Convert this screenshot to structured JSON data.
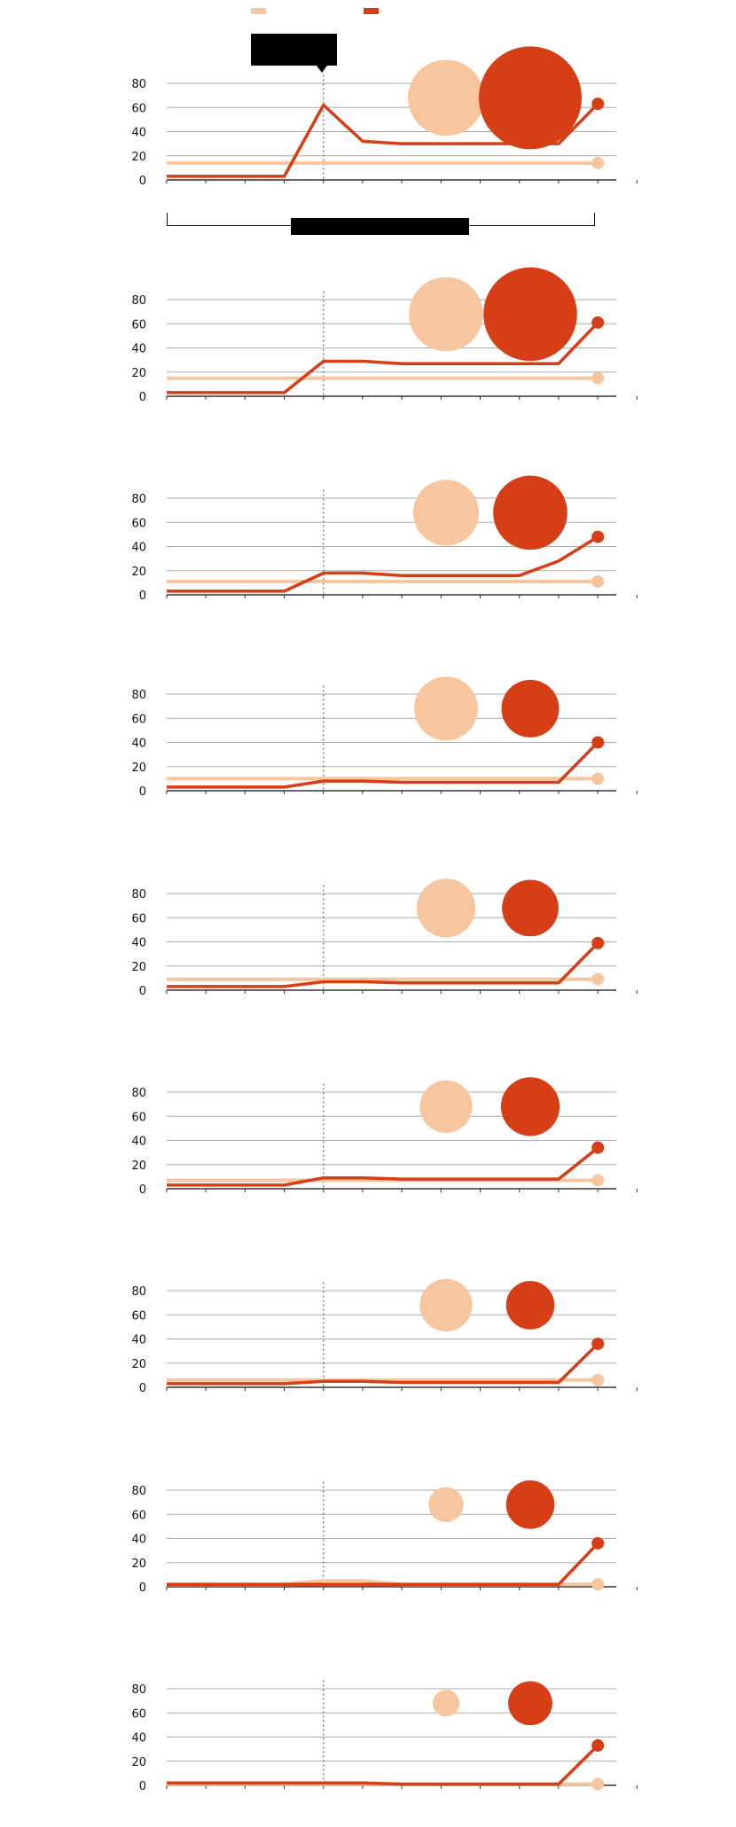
{
  "colors": {
    "light": "#f7c59e",
    "dark": "#d63e15",
    "grid": "#aaaaaa",
    "axis": "#333333",
    "marker": "#666666"
  },
  "legend": {
    "items": [
      {
        "color_key": "light",
        "label": ""
      },
      {
        "color_key": "dark",
        "label": ""
      }
    ]
  },
  "tooltip": {
    "text": ""
  },
  "brush": {
    "label": ""
  },
  "chart_data": [
    {
      "type": "line",
      "index": 1,
      "ylim": [
        0,
        90
      ],
      "yticks": [
        "0",
        "20",
        "40",
        "60",
        "80"
      ],
      "marker_x": 4,
      "series": [
        {
          "color_key": "light",
          "x": [
            0,
            1,
            2,
            3,
            4,
            5,
            6,
            7,
            8,
            9,
            10,
            11
          ],
          "values": [
            14,
            14,
            14,
            14,
            14,
            14,
            14,
            14,
            14,
            14,
            14,
            14
          ]
        },
        {
          "color_key": "dark",
          "x": [
            0,
            1,
            2,
            3,
            4,
            5,
            6,
            7,
            8,
            9,
            10,
            11
          ],
          "values": [
            3,
            3,
            3,
            3,
            62,
            32,
            30,
            30,
            30,
            30,
            30,
            63
          ]
        }
      ],
      "bubbles": [
        {
          "color_key": "light",
          "size": 0.74
        },
        {
          "color_key": "dark",
          "size": 1.0
        }
      ]
    },
    {
      "type": "line",
      "index": 2,
      "ylim": [
        0,
        90
      ],
      "yticks": [
        "0",
        "20",
        "40",
        "60",
        "80"
      ],
      "marker_x": 4,
      "series": [
        {
          "color_key": "light",
          "x": [
            0,
            1,
            2,
            3,
            4,
            5,
            6,
            7,
            8,
            9,
            10,
            11
          ],
          "values": [
            15,
            15,
            15,
            15,
            15,
            15,
            15,
            15,
            15,
            15,
            15,
            15
          ]
        },
        {
          "color_key": "dark",
          "x": [
            0,
            1,
            2,
            3,
            4,
            5,
            6,
            7,
            8,
            9,
            10,
            11
          ],
          "values": [
            3,
            3,
            3,
            3,
            29,
            29,
            27,
            27,
            27,
            27,
            27,
            61
          ]
        }
      ],
      "bubbles": [
        {
          "color_key": "light",
          "size": 0.72
        },
        {
          "color_key": "dark",
          "size": 0.91
        }
      ]
    },
    {
      "type": "line",
      "index": 3,
      "ylim": [
        0,
        90
      ],
      "yticks": [
        "0",
        "20",
        "40",
        "60",
        "80"
      ],
      "marker_x": 4,
      "series": [
        {
          "color_key": "light",
          "x": [
            0,
            1,
            2,
            3,
            4,
            5,
            6,
            7,
            8,
            9,
            10,
            11
          ],
          "values": [
            11,
            11,
            11,
            11,
            11,
            11,
            11,
            11,
            11,
            11,
            11,
            11
          ]
        },
        {
          "color_key": "dark",
          "x": [
            0,
            1,
            2,
            3,
            4,
            5,
            6,
            7,
            8,
            9,
            10,
            11
          ],
          "values": [
            3,
            3,
            3,
            3,
            18,
            18,
            16,
            16,
            16,
            16,
            28,
            48
          ]
        }
      ],
      "bubbles": [
        {
          "color_key": "light",
          "size": 0.64
        },
        {
          "color_key": "dark",
          "size": 0.72
        }
      ]
    },
    {
      "type": "line",
      "index": 4,
      "ylim": [
        0,
        90
      ],
      "yticks": [
        "0",
        "20",
        "40",
        "60",
        "80"
      ],
      "marker_x": 4,
      "series": [
        {
          "color_key": "light",
          "x": [
            0,
            1,
            2,
            3,
            4,
            5,
            6,
            7,
            8,
            9,
            10,
            11
          ],
          "values": [
            10,
            10,
            10,
            10,
            10,
            10,
            10,
            10,
            10,
            10,
            10,
            10
          ]
        },
        {
          "color_key": "dark",
          "x": [
            0,
            1,
            2,
            3,
            4,
            5,
            6,
            7,
            8,
            9,
            10,
            11
          ],
          "values": [
            3,
            3,
            3,
            3,
            8,
            8,
            7,
            7,
            7,
            7,
            7,
            40
          ]
        }
      ],
      "bubbles": [
        {
          "color_key": "light",
          "size": 0.62
        },
        {
          "color_key": "dark",
          "size": 0.56
        }
      ]
    },
    {
      "type": "line",
      "index": 5,
      "ylim": [
        0,
        90
      ],
      "yticks": [
        "0",
        "20",
        "40",
        "60",
        "80"
      ],
      "marker_x": 4,
      "series": [
        {
          "color_key": "light",
          "x": [
            0,
            1,
            2,
            3,
            4,
            5,
            6,
            7,
            8,
            9,
            10,
            11
          ],
          "values": [
            9,
            9,
            9,
            9,
            9,
            9,
            9,
            9,
            9,
            9,
            9,
            9
          ]
        },
        {
          "color_key": "dark",
          "x": [
            0,
            1,
            2,
            3,
            4,
            5,
            6,
            7,
            8,
            9,
            10,
            11
          ],
          "values": [
            3,
            3,
            3,
            3,
            7,
            7,
            6,
            6,
            6,
            6,
            6,
            39
          ]
        }
      ],
      "bubbles": [
        {
          "color_key": "light",
          "size": 0.57
        },
        {
          "color_key": "dark",
          "size": 0.55
        }
      ]
    },
    {
      "type": "line",
      "index": 6,
      "ylim": [
        0,
        90
      ],
      "yticks": [
        "0",
        "20",
        "40",
        "60",
        "80"
      ],
      "marker_x": 4,
      "series": [
        {
          "color_key": "light",
          "x": [
            0,
            1,
            2,
            3,
            4,
            5,
            6,
            7,
            8,
            9,
            10,
            11
          ],
          "values": [
            7,
            7,
            7,
            7,
            7,
            7,
            7,
            7,
            7,
            7,
            7,
            7
          ]
        },
        {
          "color_key": "dark",
          "x": [
            0,
            1,
            2,
            3,
            4,
            5,
            6,
            7,
            8,
            9,
            10,
            11
          ],
          "values": [
            3,
            3,
            3,
            3,
            9,
            9,
            8,
            8,
            8,
            8,
            8,
            34
          ]
        }
      ],
      "bubbles": [
        {
          "color_key": "light",
          "size": 0.51
        },
        {
          "color_key": "dark",
          "size": 0.57
        }
      ]
    },
    {
      "type": "line",
      "index": 7,
      "ylim": [
        0,
        90
      ],
      "yticks": [
        "0",
        "20",
        "40",
        "60",
        "80"
      ],
      "marker_x": 4,
      "series": [
        {
          "color_key": "light",
          "x": [
            0,
            1,
            2,
            3,
            4,
            5,
            6,
            7,
            8,
            9,
            10,
            11
          ],
          "values": [
            6,
            6,
            6,
            6,
            6,
            6,
            6,
            6,
            6,
            6,
            6,
            6
          ]
        },
        {
          "color_key": "dark",
          "x": [
            0,
            1,
            2,
            3,
            4,
            5,
            6,
            7,
            8,
            9,
            10,
            11
          ],
          "values": [
            3,
            3,
            3,
            3,
            5,
            5,
            4,
            4,
            4,
            4,
            4,
            36
          ]
        }
      ],
      "bubbles": [
        {
          "color_key": "light",
          "size": 0.51
        },
        {
          "color_key": "dark",
          "size": 0.47
        }
      ]
    },
    {
      "type": "line",
      "index": 8,
      "ylim": [
        0,
        90
      ],
      "yticks": [
        "0",
        "20",
        "40",
        "60",
        "80"
      ],
      "marker_x": 4,
      "series": [
        {
          "color_key": "light",
          "x": [
            0,
            1,
            2,
            3,
            4,
            5,
            6,
            7,
            8,
            9,
            10,
            11
          ],
          "values": [
            2,
            2,
            2,
            2,
            5,
            5,
            2,
            2,
            2,
            2,
            2,
            2
          ]
        },
        {
          "color_key": "dark",
          "x": [
            0,
            1,
            2,
            3,
            4,
            5,
            6,
            7,
            8,
            9,
            10,
            11
          ],
          "values": [
            2,
            2,
            2,
            2,
            2,
            2,
            2,
            2,
            2,
            2,
            2,
            36
          ]
        }
      ],
      "bubbles": [
        {
          "color_key": "light",
          "size": 0.34
        },
        {
          "color_key": "dark",
          "size": 0.47
        }
      ]
    },
    {
      "type": "line",
      "index": 9,
      "ylim": [
        0,
        90
      ],
      "yticks": [
        "0",
        "20",
        "40",
        "60",
        "80"
      ],
      "marker_x": 4,
      "series": [
        {
          "color_key": "light",
          "x": [
            0,
            1,
            2,
            3,
            4,
            5,
            6,
            7,
            8,
            9,
            10,
            11
          ],
          "values": [
            1,
            1,
            1,
            1,
            1,
            1,
            1,
            1,
            1,
            1,
            1,
            1
          ]
        },
        {
          "color_key": "dark",
          "x": [
            0,
            1,
            2,
            3,
            4,
            5,
            6,
            7,
            8,
            9,
            10,
            11
          ],
          "values": [
            2,
            2,
            2,
            2,
            2,
            2,
            1,
            1,
            1,
            1,
            1,
            33
          ]
        }
      ],
      "bubbles": [
        {
          "color_key": "light",
          "size": 0.26
        },
        {
          "color_key": "dark",
          "size": 0.43
        }
      ]
    }
  ]
}
